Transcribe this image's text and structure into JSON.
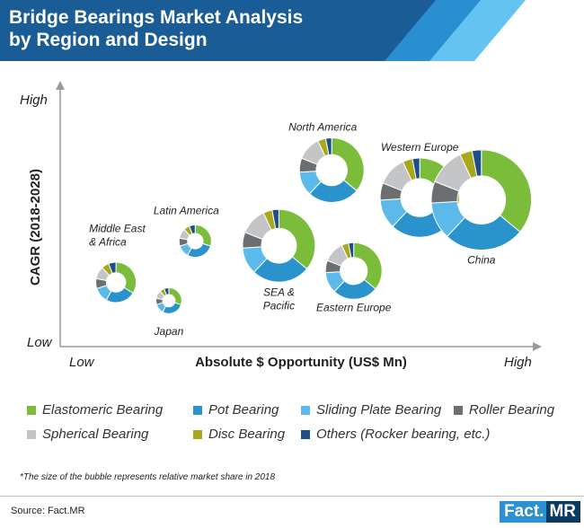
{
  "header": {
    "title_line1": "Bridge Bearings Market Analysis",
    "title_line2": "by Region and Design",
    "colors": {
      "dark": "#1a5c96",
      "mid": "#2a8fd0",
      "light": "#64c3f0"
    }
  },
  "chart_data": {
    "type": "bubble-donut",
    "xlabel": "Absolute $ Opportunity (US$ Mn)",
    "ylabel": "CAGR (2018-2028)",
    "x_low_label": "Low",
    "x_high_label": "High",
    "y_low_label": "Low",
    "y_high_label": "High",
    "segment_order": [
      "Elastomeric Bearing",
      "Pot Bearing",
      "Sliding Plate Bearing",
      "Roller Bearing",
      "Spherical Bearing",
      "Disc Bearing",
      "Others (Rocker bearing, etc.)"
    ],
    "segment_colors": [
      "#7bbd3a",
      "#2a93cc",
      "#5cbaea",
      "#6d6e70",
      "#c4c5c7",
      "#a9a81a",
      "#1f4f8b"
    ],
    "x_range": [
      0,
      10
    ],
    "y_range": [
      0,
      10
    ],
    "bubbles": [
      {
        "name": "Middle East & Africa",
        "label_lines": [
          "Middle East",
          "& Africa"
        ],
        "x": 0.9,
        "y": 2.1,
        "size": 2.5,
        "shares": [
          34,
          24,
          12,
          8,
          10,
          6,
          6
        ]
      },
      {
        "name": "Japan",
        "label_lines": [
          "Japan"
        ],
        "x": 2.1,
        "y": 1.3,
        "size": 1.6,
        "shares": [
          30,
          28,
          12,
          8,
          10,
          6,
          6
        ]
      },
      {
        "name": "Latin America",
        "label_lines": [
          "Latin America"
        ],
        "x": 2.7,
        "y": 3.9,
        "size": 2.0,
        "shares": [
          30,
          28,
          12,
          8,
          10,
          6,
          6
        ]
      },
      {
        "name": "SEA & Pacific",
        "label_lines": [
          "SEA &",
          "Pacific"
        ],
        "x": 4.6,
        "y": 3.7,
        "size": 4.5,
        "shares": [
          36,
          26,
          12,
          7,
          12,
          4,
          3
        ]
      },
      {
        "name": "North America",
        "label_lines": [
          "North America"
        ],
        "x": 5.8,
        "y": 7.0,
        "size": 4.0,
        "shares": [
          36,
          26,
          12,
          7,
          12,
          4,
          3
        ]
      },
      {
        "name": "Eastern Europe",
        "label_lines": [
          "Eastern Europe"
        ],
        "x": 6.3,
        "y": 2.6,
        "size": 3.5,
        "shares": [
          36,
          26,
          12,
          7,
          12,
          4,
          3
        ]
      },
      {
        "name": "Western Europe",
        "label_lines": [
          "Western Europe"
        ],
        "x": 7.8,
        "y": 5.8,
        "size": 4.9,
        "shares": [
          36,
          26,
          12,
          7,
          12,
          4,
          3
        ]
      },
      {
        "name": "China",
        "label_lines": [
          "China"
        ],
        "x": 9.2,
        "y": 5.7,
        "size": 6.2,
        "shares": [
          36,
          26,
          12,
          7,
          12,
          4,
          3
        ]
      }
    ]
  },
  "legend": {
    "items": [
      {
        "label": "Elastomeric Bearing",
        "color": "#7bbd3a"
      },
      {
        "label": "Pot Bearing",
        "color": "#2a93cc"
      },
      {
        "label": "Sliding Plate Bearing",
        "color": "#5cbaea"
      },
      {
        "label": "Roller Bearing",
        "color": "#6d6e70"
      },
      {
        "label": "Spherical Bearing",
        "color": "#c4c5c7"
      },
      {
        "label": "Disc Bearing",
        "color": "#a9a81a"
      },
      {
        "label": "Others (Rocker bearing, etc.)",
        "color": "#1f4f8b"
      }
    ]
  },
  "footer": {
    "note": "*The size of the bubble represents relative market share in 2018",
    "source": "Source: Fact.MR",
    "logo_part1": "Fact.",
    "logo_part2": "MR"
  }
}
